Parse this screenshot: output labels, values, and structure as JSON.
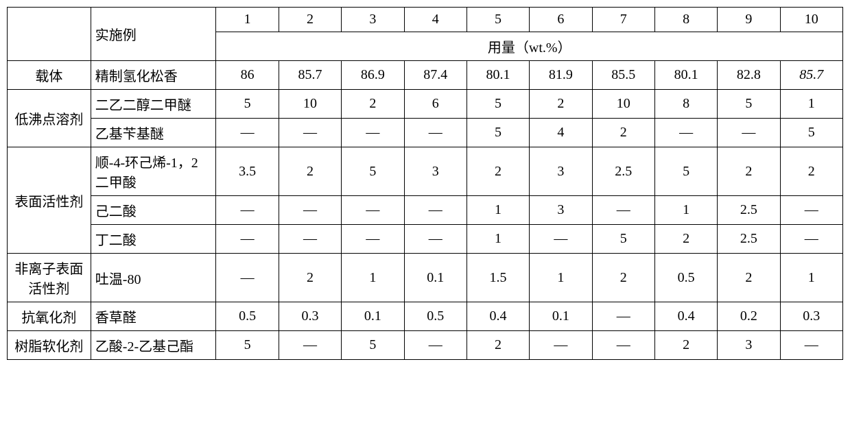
{
  "header": {
    "row_label": "实施例",
    "unit_row": "用量（wt.%）",
    "cols": [
      "1",
      "2",
      "3",
      "4",
      "5",
      "6",
      "7",
      "8",
      "9",
      "10"
    ]
  },
  "rows": [
    {
      "category": "载体",
      "component": "精制氢化松香",
      "values": [
        "86",
        "85.7",
        "86.9",
        "87.4",
        "80.1",
        "81.9",
        "85.5",
        "80.1",
        "82.8",
        "85.7"
      ],
      "last_italic": true
    },
    {
      "category": "低沸点溶剂",
      "category_rowspan": 2,
      "component": "二乙二醇二甲醚",
      "values": [
        "5",
        "10",
        "2",
        "6",
        "5",
        "2",
        "10",
        "8",
        "5",
        "1"
      ]
    },
    {
      "component": "乙基苄基醚",
      "values": [
        "—",
        "—",
        "—",
        "—",
        "5",
        "4",
        "2",
        "—",
        "—",
        "5"
      ]
    },
    {
      "category": "表面活性剂",
      "category_rowspan": 3,
      "component": "顺-4-环己烯-1，2 二甲酸",
      "values": [
        "3.5",
        "2",
        "5",
        "3",
        "2",
        "3",
        "2.5",
        "5",
        "2",
        "2"
      ]
    },
    {
      "component": "己二酸",
      "values": [
        "—",
        "—",
        "—",
        "—",
        "1",
        "3",
        "—",
        "1",
        "2.5",
        "—"
      ]
    },
    {
      "component": "丁二酸",
      "values": [
        "—",
        "—",
        "—",
        "—",
        "1",
        "—",
        "5",
        "2",
        "2.5",
        "—"
      ]
    },
    {
      "category": "非离子表面活性剂",
      "component": "吐温-80",
      "values": [
        "—",
        "2",
        "1",
        "0.1",
        "1.5",
        "1",
        "2",
        "0.5",
        "2",
        "1"
      ]
    },
    {
      "category": "抗氧化剂",
      "component": "香草醛",
      "values": [
        "0.5",
        "0.3",
        "0.1",
        "0.5",
        "0.4",
        "0.1",
        "—",
        "0.4",
        "0.2",
        "0.3"
      ]
    },
    {
      "category": "树脂软化剂",
      "component": "乙酸-2-乙基己酯",
      "values": [
        "5",
        "—",
        "5",
        "—",
        "2",
        "—",
        "—",
        "2",
        "3",
        "—"
      ]
    }
  ]
}
